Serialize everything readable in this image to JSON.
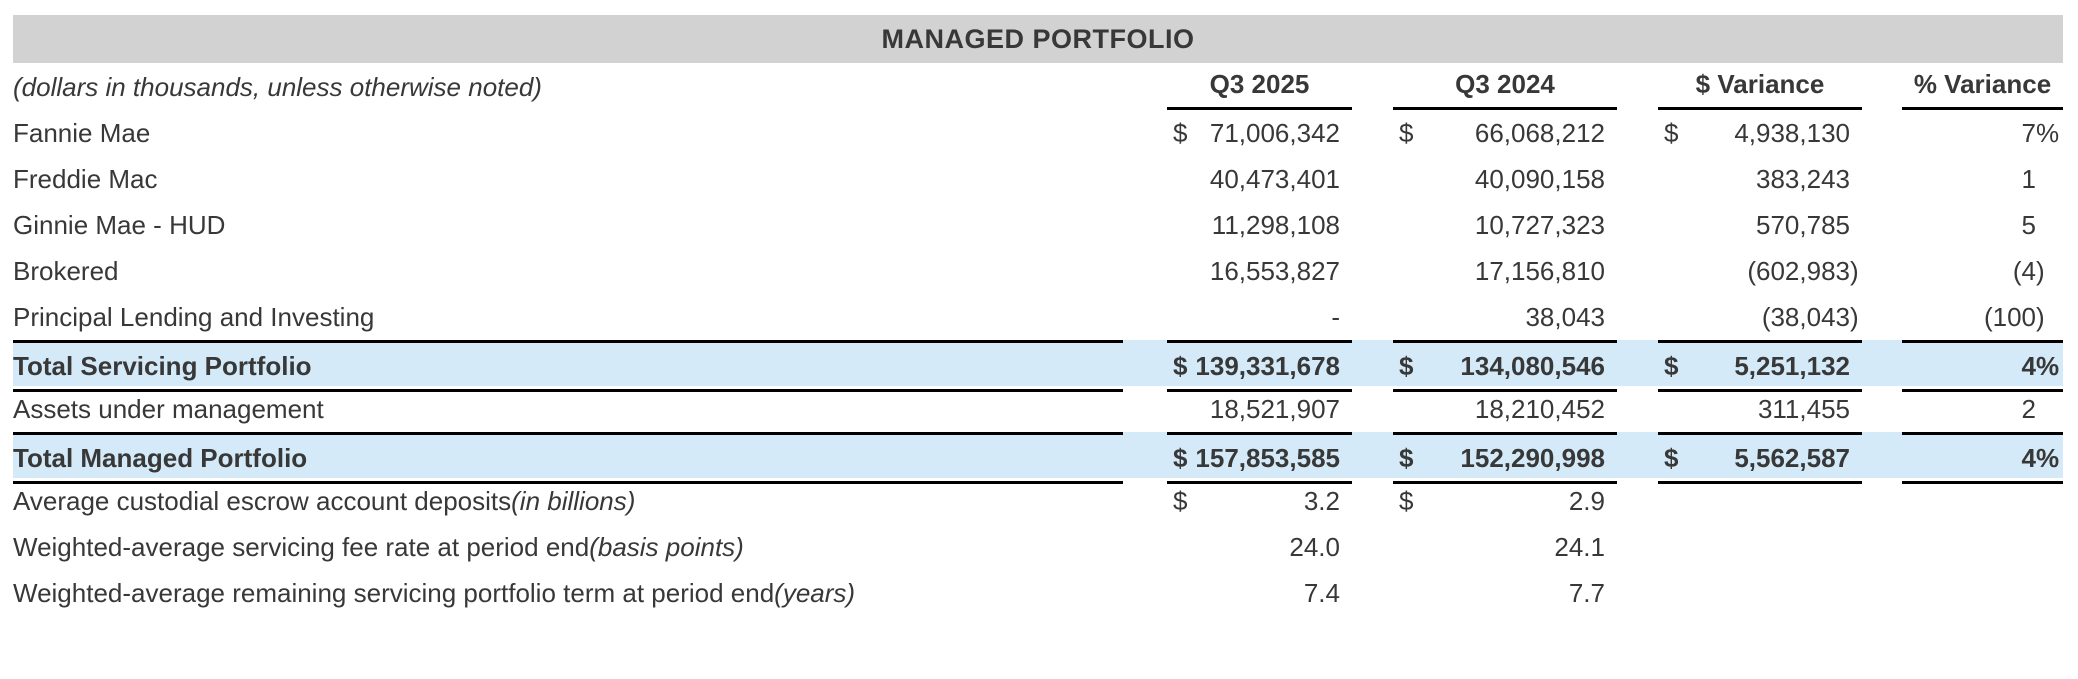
{
  "title": "MANAGED PORTFOLIO",
  "note": "(dollars in thousands, unless otherwise noted)",
  "columns": [
    "Q3 2025",
    "Q3 2024",
    "$ Variance",
    "% Variance"
  ],
  "rows": [
    {
      "label": "Fannie Mae",
      "cells": [
        [
          "$",
          "71,006,342"
        ],
        [
          "$",
          "66,068,212"
        ],
        [
          "$",
          "4,938,130"
        ],
        [
          "",
          "7%"
        ]
      ]
    },
    {
      "label": "Freddie Mac",
      "cells": [
        [
          "",
          "40,473,401"
        ],
        [
          "",
          "40,090,158"
        ],
        [
          "",
          "383,243"
        ],
        [
          "",
          "1"
        ]
      ]
    },
    {
      "label": "Ginnie Mae - HUD",
      "cells": [
        [
          "",
          "11,298,108"
        ],
        [
          "",
          "10,727,323"
        ],
        [
          "",
          "570,785"
        ],
        [
          "",
          "5"
        ]
      ]
    },
    {
      "label": "Brokered",
      "cells": [
        [
          "",
          "16,553,827"
        ],
        [
          "",
          "17,156,810"
        ],
        [
          "",
          "(602,983)"
        ],
        [
          "",
          "(4)"
        ]
      ]
    },
    {
      "label": "Principal Lending and Investing",
      "cells": [
        [
          "",
          "-"
        ],
        [
          "",
          "38,043"
        ],
        [
          "",
          "(38,043)"
        ],
        [
          "",
          "(100)"
        ]
      ]
    },
    {
      "label": "Total Servicing Portfolio",
      "total": true,
      "cells": [
        [
          "$",
          "139,331,678"
        ],
        [
          "$",
          "134,080,546"
        ],
        [
          "$",
          "5,251,132"
        ],
        [
          "",
          "4%"
        ]
      ]
    },
    {
      "label": "Assets under management",
      "cells": [
        [
          "",
          "18,521,907"
        ],
        [
          "",
          "18,210,452"
        ],
        [
          "",
          "311,455"
        ],
        [
          "",
          "2"
        ]
      ]
    },
    {
      "label": "Total Managed Portfolio",
      "total": true,
      "cells": [
        [
          "$",
          "157,853,585"
        ],
        [
          "$",
          "152,290,998"
        ],
        [
          "$",
          "5,562,587"
        ],
        [
          "",
          "4%"
        ]
      ]
    },
    {
      "label": "Average custodial escrow account deposits",
      "label_note": "(in billions)",
      "cells": [
        [
          "$",
          "3.2"
        ],
        [
          "$",
          "2.9"
        ],
        [
          "",
          ""
        ],
        [
          "",
          ""
        ]
      ]
    },
    {
      "label": "Weighted-average servicing fee rate at period end",
      "label_note": "(basis points)",
      "cells": [
        [
          "",
          "24.0"
        ],
        [
          "",
          "24.1"
        ],
        [
          "",
          ""
        ],
        [
          "",
          ""
        ]
      ]
    },
    {
      "label": "Weighted-average remaining servicing portfolio term at period end",
      "label_note": "(years)",
      "cells": [
        [
          "",
          "7.4"
        ],
        [
          "",
          "7.7"
        ],
        [
          "",
          ""
        ],
        [
          "",
          ""
        ]
      ]
    }
  ],
  "colors": {
    "title_bar_bg": "#d2d2d2",
    "total_row_bg": "#d4eaf8",
    "text": "#383838",
    "border": "#000000"
  }
}
